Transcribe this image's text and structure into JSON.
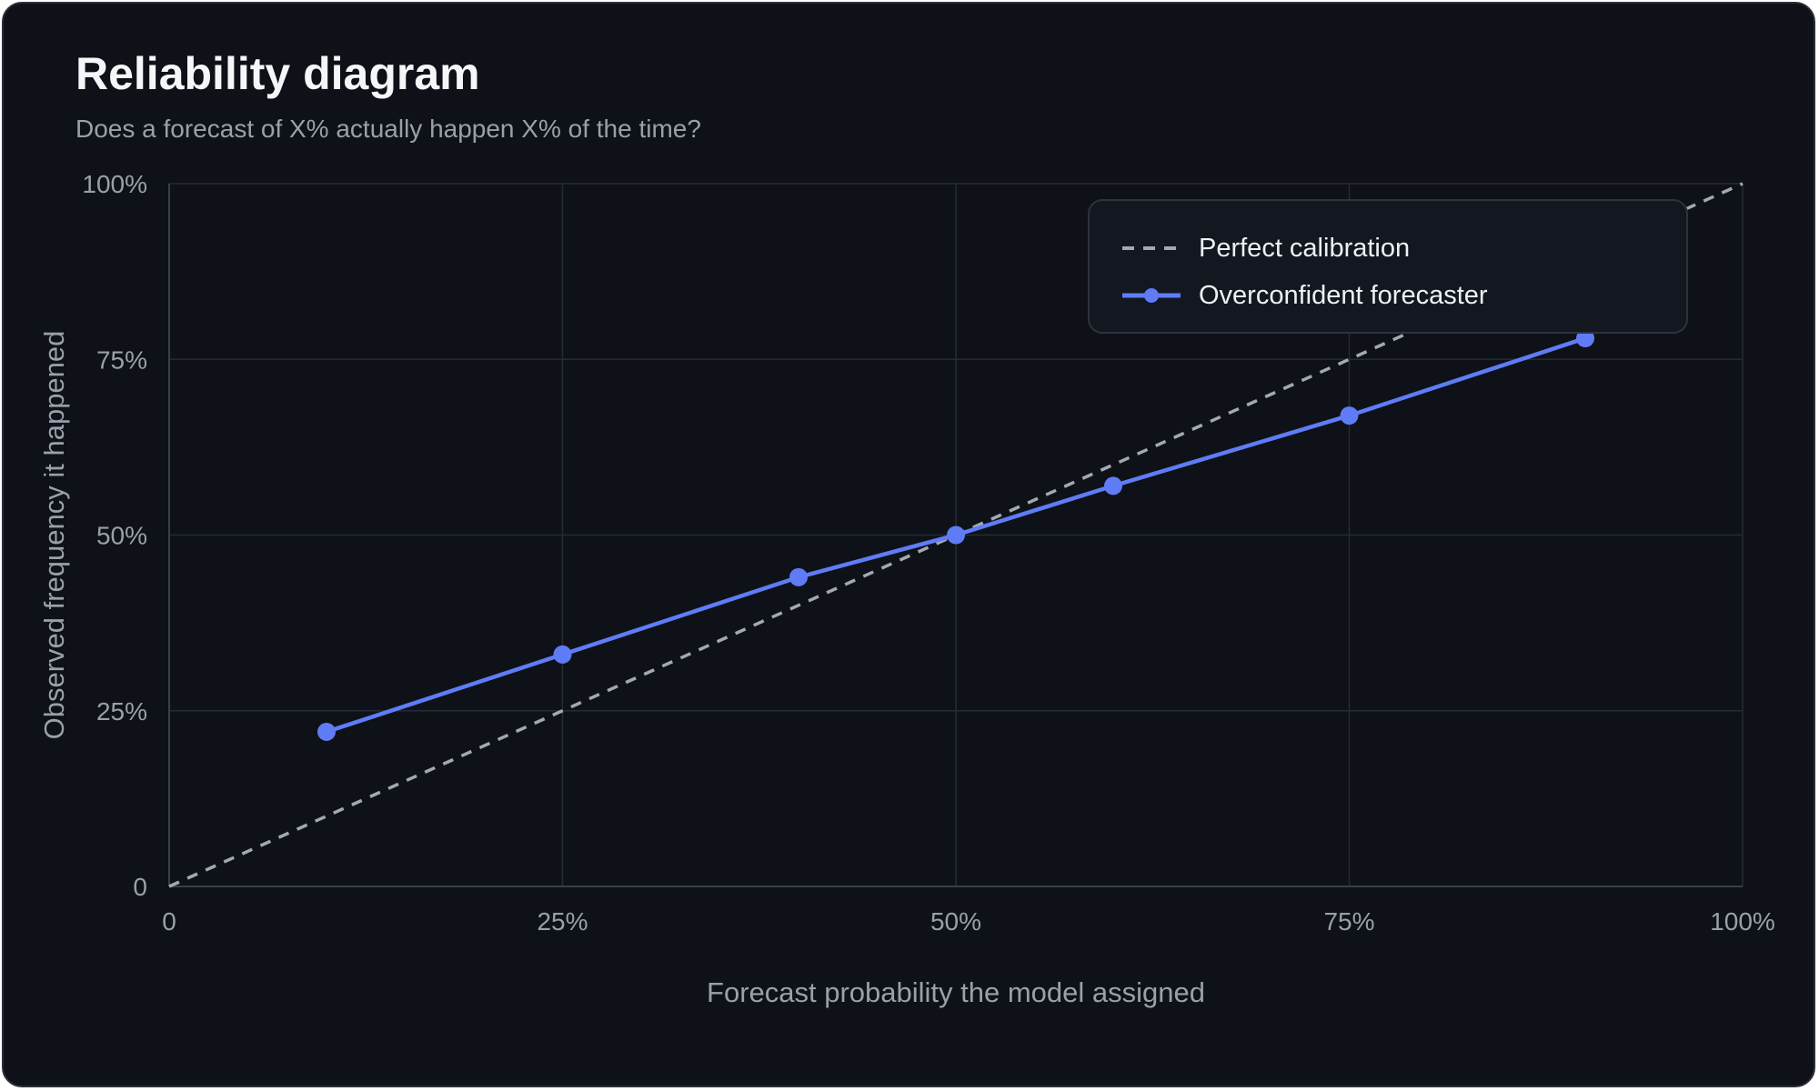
{
  "title": "Reliability diagram",
  "subtitle": "Does a forecast of X% actually happen X% of the time?",
  "colors": {
    "background": "#0e1117",
    "grid": "#262a33",
    "axis": "#3a3f4a",
    "perfect_line": "#a4a8b0",
    "forecaster_line": "#5f7cf6",
    "text_muted": "#9aa0aa"
  },
  "chart_data": {
    "type": "line",
    "title": "Reliability diagram",
    "subtitle": "Does a forecast of X% actually happen X% of the time?",
    "xlabel": "Forecast probability the model assigned",
    "ylabel": "Observed frequency it happened",
    "xlim": [
      0,
      1
    ],
    "ylim": [
      0,
      1
    ],
    "x_ticks": [
      0,
      0.25,
      0.5,
      0.75,
      1
    ],
    "x_tick_labels": [
      "0",
      "25%",
      "50%",
      "75%",
      "100%"
    ],
    "y_ticks": [
      0,
      0.25,
      0.5,
      0.75,
      1
    ],
    "y_tick_labels": [
      "0",
      "25%",
      "50%",
      "75%",
      "100%"
    ],
    "grid": true,
    "legend_position": "top-right",
    "series": [
      {
        "name": "Perfect calibration",
        "style": "dashed",
        "color": "#a4a8b0",
        "markers": false,
        "x": [
          0,
          1
        ],
        "y": [
          0,
          1
        ]
      },
      {
        "name": "Overconfident forecaster",
        "style": "solid",
        "color": "#5f7cf6",
        "markers": true,
        "x": [
          0.1,
          0.25,
          0.4,
          0.5,
          0.6,
          0.75,
          0.9
        ],
        "y": [
          0.22,
          0.33,
          0.44,
          0.5,
          0.57,
          0.67,
          0.78
        ]
      }
    ]
  }
}
